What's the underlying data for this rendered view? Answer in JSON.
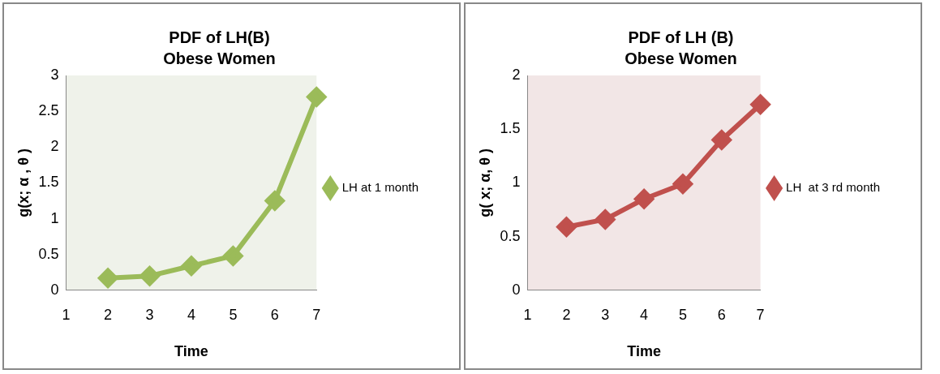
{
  "chart_data": [
    {
      "type": "line",
      "title": "PDF of LH(B)",
      "subtitle": "Obese Women",
      "xlabel": "Time",
      "ylabel": "g(x; α , θ )",
      "categories": [
        "1",
        "2",
        "3",
        "4",
        "5",
        "6",
        "7"
      ],
      "series": [
        {
          "name": "LH at 1 month",
          "color": "#9bbb59",
          "values": [
            null,
            0.17,
            0.2,
            0.34,
            0.48,
            1.25,
            2.7
          ]
        }
      ],
      "ylim": [
        0,
        3
      ],
      "yticks": [
        0,
        0.5,
        1,
        1.5,
        2,
        2.5,
        3
      ],
      "grid": false,
      "legend": "right",
      "marker": "diamond",
      "line_style": "solid"
    },
    {
      "type": "line",
      "title": "PDF of LH (B)",
      "subtitle": "Obese Women",
      "xlabel": "Time",
      "ylabel": "g( x; α, θ )",
      "categories": [
        "1",
        "2",
        "3",
        "4",
        "5",
        "6",
        "7"
      ],
      "series": [
        {
          "name": "LH  at 3 rd month",
          "color": "#c0504d",
          "values": [
            null,
            0.59,
            0.66,
            0.85,
            0.99,
            1.4,
            1.73
          ]
        }
      ],
      "ylim": [
        0,
        2
      ],
      "yticks": [
        0,
        0.5,
        1,
        1.5,
        2
      ],
      "grid": false,
      "legend": "right",
      "marker": "diamond",
      "line_style": "solid"
    }
  ]
}
